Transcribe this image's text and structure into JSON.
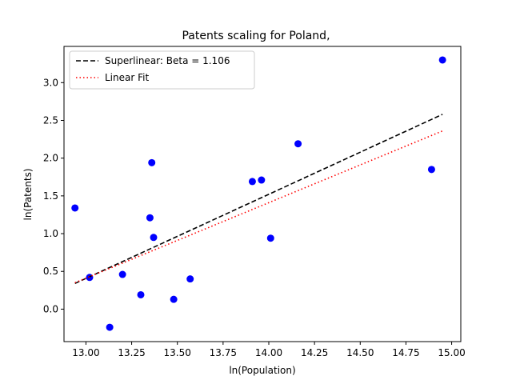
{
  "chart_data": {
    "type": "scatter",
    "title": "Patents scaling for Poland,",
    "xlabel": "ln(Population)",
    "ylabel": "ln(Patents)",
    "xlim": [
      12.88,
      15.05
    ],
    "ylim": [
      -0.43,
      3.48
    ],
    "x_ticks": [
      "13.00",
      "13.25",
      "13.50",
      "13.75",
      "14.00",
      "14.25",
      "14.50",
      "14.75",
      "15.00"
    ],
    "y_ticks": [
      "0.0",
      "0.5",
      "1.0",
      "1.5",
      "2.0",
      "2.5",
      "3.0"
    ],
    "grid": false,
    "legend_position": "top-left",
    "points": [
      {
        "x": 12.94,
        "y": 1.34
      },
      {
        "x": 13.02,
        "y": 0.42
      },
      {
        "x": 13.13,
        "y": -0.24
      },
      {
        "x": 13.2,
        "y": 0.46
      },
      {
        "x": 13.3,
        "y": 0.19
      },
      {
        "x": 13.35,
        "y": 1.21
      },
      {
        "x": 13.36,
        "y": 1.94
      },
      {
        "x": 13.37,
        "y": 0.95
      },
      {
        "x": 13.48,
        "y": 0.13
      },
      {
        "x": 13.57,
        "y": 0.4
      },
      {
        "x": 13.91,
        "y": 1.69
      },
      {
        "x": 13.96,
        "y": 1.71
      },
      {
        "x": 14.01,
        "y": 0.94
      },
      {
        "x": 14.16,
        "y": 2.19
      },
      {
        "x": 14.89,
        "y": 1.85
      },
      {
        "x": 14.95,
        "y": 3.3
      }
    ],
    "series": [
      {
        "name": "Superlinear: Beta = 1.106",
        "style": "dashed",
        "color": "#000000",
        "x": [
          12.94,
          14.95
        ],
        "y": [
          0.34,
          2.58
        ]
      },
      {
        "name": "Linear Fit",
        "style": "dotted",
        "color": "#ff0000",
        "x": [
          12.94,
          14.95
        ],
        "y": [
          0.35,
          2.36
        ]
      }
    ],
    "point_color": "#0000ff"
  }
}
